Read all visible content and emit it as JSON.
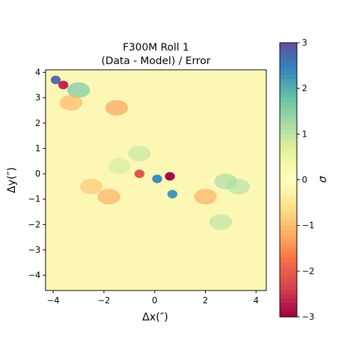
{
  "chart_data": {
    "type": "heatmap",
    "title_line1": "F300M Roll 1",
    "title_line2": "(Data - Model) / Error",
    "xlabel": "Δx(″)",
    "ylabel": "Δy(″)",
    "xlim": [
      -4.3,
      4.4
    ],
    "ylim": [
      -4.6,
      4.1
    ],
    "xticks": [
      -4,
      -2,
      0,
      2,
      4
    ],
    "yticks": [
      -4,
      -3,
      -2,
      -1,
      0,
      1,
      2,
      3,
      4
    ],
    "colorbar": {
      "label": "σ",
      "range": [
        -3,
        3
      ],
      "ticks": [
        -3,
        -2,
        -1,
        0,
        1,
        2,
        3
      ],
      "colormap": "Spectral",
      "stops": [
        "#9e0142",
        "#d53e4f",
        "#f46d43",
        "#fdae61",
        "#fee08b",
        "#ffffbf",
        "#e6f598",
        "#abdda4",
        "#66c2a5",
        "#3288bd",
        "#5e4fa2"
      ]
    },
    "residual_features": [
      {
        "description": "central dipole",
        "x": 0.6,
        "y": -0.1,
        "value": -3.0
      },
      {
        "description": "central dipole",
        "x": 0.1,
        "y": -0.2,
        "value": 2.4
      },
      {
        "description": "central dipole",
        "x": 0.7,
        "y": -0.8,
        "value": 2.3
      },
      {
        "description": "central dipole",
        "x": -0.6,
        "y": 0.0,
        "value": -2.2
      },
      {
        "description": "ring segment",
        "x": 2.8,
        "y": -0.3,
        "value": 1.3
      },
      {
        "description": "ring segment",
        "x": 3.3,
        "y": -0.5,
        "value": 1.2
      },
      {
        "description": "ring segment",
        "x": 2.6,
        "y": -1.9,
        "value": 1.1
      },
      {
        "description": "ring segment",
        "x": -0.6,
        "y": 0.8,
        "value": 1.0
      },
      {
        "description": "ring segment",
        "x": -1.4,
        "y": 0.3,
        "value": 0.8
      },
      {
        "description": "inner deficit",
        "x": 2.0,
        "y": -0.9,
        "value": -1.3
      },
      {
        "description": "inner deficit",
        "x": -1.8,
        "y": -0.9,
        "value": -1.3
      },
      {
        "description": "inner deficit",
        "x": -2.5,
        "y": -0.5,
        "value": -1.0
      },
      {
        "description": "upper-left streaks",
        "x": -3.9,
        "y": 3.7,
        "value": 2.8
      },
      {
        "description": "upper-left streaks",
        "x": -3.6,
        "y": 3.5,
        "value": -2.7
      },
      {
        "description": "upper-left streaks",
        "x": -3.0,
        "y": 3.3,
        "value": 1.8
      },
      {
        "description": "upper-left deficit",
        "x": -1.5,
        "y": 2.6,
        "value": -1.4
      },
      {
        "description": "upper-left deficit",
        "x": -3.3,
        "y": 2.8,
        "value": -1.2
      }
    ]
  }
}
